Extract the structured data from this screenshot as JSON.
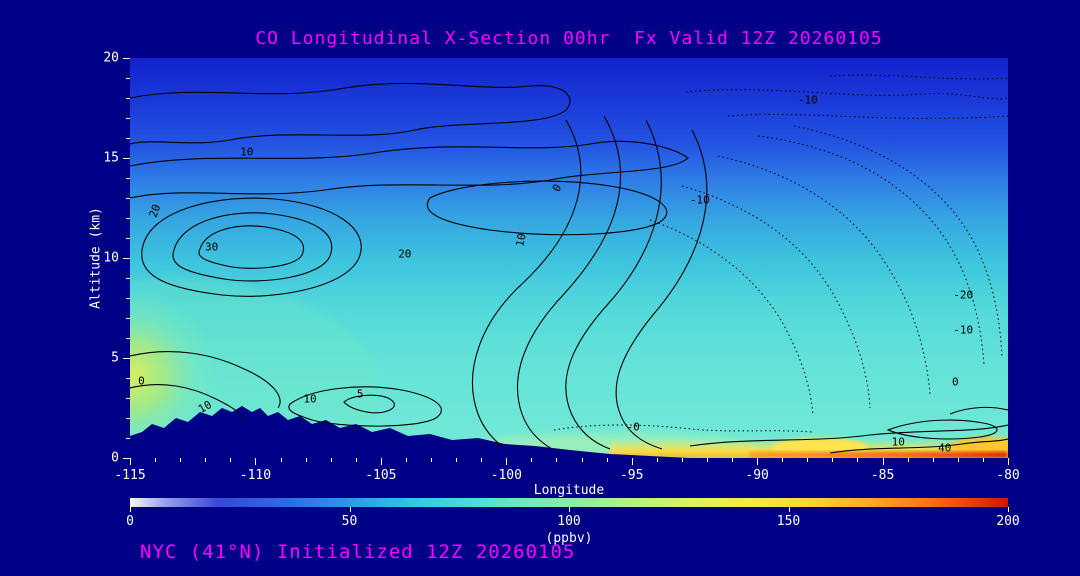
{
  "window": {
    "background_color": "#000087"
  },
  "chart_data": {
    "type": "heatmap",
    "subtype": "filled-contour longitude/altitude cross-section",
    "title": "CO Longitudinal X-Section 00hr  Fx Valid 12Z 20260105",
    "title_color": "#ff00ff",
    "xlabel": "Longitude",
    "ylabel": "Altitude (km)",
    "xlim": [
      -115,
      -80
    ],
    "ylim": [
      0,
      20
    ],
    "x_ticks": [
      -115,
      -110,
      -105,
      -100,
      -95,
      -90,
      -85,
      -80
    ],
    "y_ticks": [
      0,
      5,
      10,
      15,
      20
    ],
    "grid": false,
    "legend_position": "none",
    "colorbar": {
      "label": "(ppbv)",
      "min": 0,
      "max": 200,
      "ticks": [
        0,
        50,
        100,
        150,
        200
      ]
    },
    "contour_levels_visible": [
      -20,
      -10,
      0,
      0,
      5,
      10,
      20,
      30,
      40
    ],
    "negative_contours_dotted": true,
    "contour_labels": [
      {
        "v": "-10",
        "x": 0.772,
        "y": 0.105,
        "rot": 0
      },
      {
        "v": "10",
        "x": 0.133,
        "y": 0.235,
        "rot": 0
      },
      {
        "v": "0",
        "x": 0.486,
        "y": 0.325,
        "rot": -60
      },
      {
        "v": "20",
        "x": 0.028,
        "y": 0.383,
        "rot": -70
      },
      {
        "v": "-10",
        "x": 0.649,
        "y": 0.355,
        "rot": 0
      },
      {
        "v": "30",
        "x": 0.093,
        "y": 0.473,
        "rot": 0
      },
      {
        "v": "20",
        "x": 0.313,
        "y": 0.49,
        "rot": 0
      },
      {
        "v": "10",
        "x": 0.445,
        "y": 0.455,
        "rot": -80
      },
      {
        "v": "-20",
        "x": 0.949,
        "y": 0.593,
        "rot": 0
      },
      {
        "v": "-10",
        "x": 0.949,
        "y": 0.68,
        "rot": 0
      },
      {
        "v": "0",
        "x": 0.013,
        "y": 0.808,
        "rot": 0
      },
      {
        "v": "10",
        "x": 0.085,
        "y": 0.873,
        "rot": -30
      },
      {
        "v": "10",
        "x": 0.205,
        "y": 0.853,
        "rot": 0
      },
      {
        "v": "5",
        "x": 0.262,
        "y": 0.84,
        "rot": 0
      },
      {
        "v": "0",
        "x": 0.94,
        "y": 0.81,
        "rot": 0
      },
      {
        "v": "-0",
        "x": 0.573,
        "y": 0.923,
        "rot": 0
      },
      {
        "v": "10",
        "x": 0.875,
        "y": 0.96,
        "rot": 0
      },
      {
        "v": "40",
        "x": 0.928,
        "y": 0.975,
        "rot": 0
      }
    ],
    "fill_values_ppbv": {
      "altitudes_km": [
        20,
        15,
        10,
        5,
        0
      ],
      "longitudes": [
        -115,
        -110,
        -105,
        -100,
        -95,
        -90,
        -85,
        -80
      ],
      "grid": [
        [
          30,
          30,
          30,
          30,
          28,
          25,
          25,
          25
        ],
        [
          45,
          42,
          40,
          40,
          38,
          35,
          35,
          35
        ],
        [
          65,
          60,
          58,
          60,
          62,
          60,
          58,
          55
        ],
        [
          105,
          90,
          85,
          85,
          82,
          80,
          78,
          78
        ],
        [
          null,
          null,
          95,
          95,
          100,
          140,
          170,
          185
        ]
      ]
    },
    "terrain": "dark navy surface silhouette up to ~2.5 km between longitudes -115 and -97"
  },
  "footer": {
    "text": "NYC (41°N) Initialized 12Z 20260105",
    "color": "#ff00ff"
  }
}
